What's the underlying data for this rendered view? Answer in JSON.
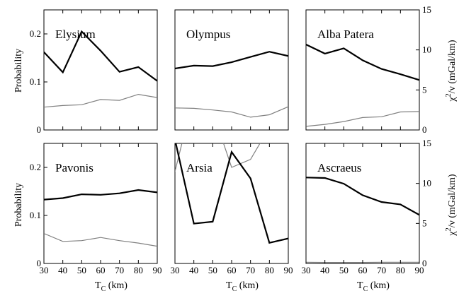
{
  "chart_data": {
    "type": "line",
    "layout": "2x3 small multiples with shared axes",
    "xlabel": "T",
    "xlabel_sub": "C",
    "xlabel_unit": " (km)",
    "ylabel_left": "Probability",
    "ylabel_right_main": "χ",
    "ylabel_right_sup": "2",
    "ylabel_right_rest": "/ν (mGal/km)",
    "x_ticks": [
      30,
      40,
      50,
      60,
      70,
      80,
      90
    ],
    "x_tick_labels": [
      "30",
      "40",
      "50",
      "60",
      "70",
      "80",
      "90"
    ],
    "xlim": [
      30,
      90
    ],
    "y_left_ticks": [
      0,
      0.1,
      0.2
    ],
    "y_left_tick_labels": [
      "0",
      "0.1",
      "0.2"
    ],
    "y_left_lim": [
      0,
      0.25
    ],
    "y_right_ticks": [
      0,
      5,
      10,
      15
    ],
    "y_right_tick_labels": [
      "0",
      "5",
      "10",
      "15"
    ],
    "y_right_lim": [
      0,
      15
    ],
    "series_colors": {
      "probability": "#000000",
      "chi2": "#808080"
    },
    "panels": [
      {
        "title": "Elysium",
        "x": [
          30,
          40,
          50,
          60,
          70,
          80,
          90
        ],
        "probability": [
          0.162,
          0.12,
          0.205,
          0.165,
          0.121,
          0.131,
          0.102
        ],
        "chi2": [
          2.85,
          3.05,
          3.15,
          3.8,
          3.7,
          4.45,
          4.05
        ]
      },
      {
        "title": "Olympus",
        "x": [
          30,
          40,
          50,
          60,
          70,
          80,
          90
        ],
        "probability": [
          0.128,
          0.134,
          0.133,
          0.141,
          0.152,
          0.163,
          0.154
        ],
        "chi2": [
          2.75,
          2.7,
          2.5,
          2.25,
          1.6,
          1.9,
          2.9
        ]
      },
      {
        "title": "Alba Patera",
        "x": [
          30,
          40,
          50,
          60,
          70,
          80,
          90
        ],
        "probability": [
          0.178,
          0.159,
          0.17,
          0.145,
          0.127,
          0.116,
          0.104
        ],
        "chi2": [
          0.45,
          0.7,
          1.05,
          1.55,
          1.65,
          2.25,
          2.3
        ]
      },
      {
        "title": "Pavonis",
        "x": [
          30,
          40,
          50,
          60,
          70,
          80,
          90
        ],
        "probability": [
          0.133,
          0.136,
          0.144,
          0.143,
          0.146,
          0.153,
          0.148
        ],
        "chi2": [
          3.75,
          2.75,
          2.85,
          3.25,
          2.85,
          2.55,
          2.15
        ]
      },
      {
        "title": "Arsia",
        "x": [
          30,
          40,
          50,
          60,
          70,
          80,
          90
        ],
        "probability": [
          0.258,
          0.083,
          0.087,
          0.232,
          0.177,
          0.043,
          0.052
        ],
        "chi2": [
          11.5,
          21,
          19,
          12,
          13,
          17,
          16
        ]
      },
      {
        "title": "Ascraeus",
        "x": [
          30,
          40,
          50,
          60,
          70,
          80,
          90
        ],
        "probability": [
          0.179,
          0.178,
          0.166,
          0.142,
          0.128,
          0.123,
          0.101
        ],
        "chi2": [
          0.15,
          0.12,
          0.12,
          0.12,
          0.15,
          0.15,
          0.15
        ]
      }
    ]
  }
}
